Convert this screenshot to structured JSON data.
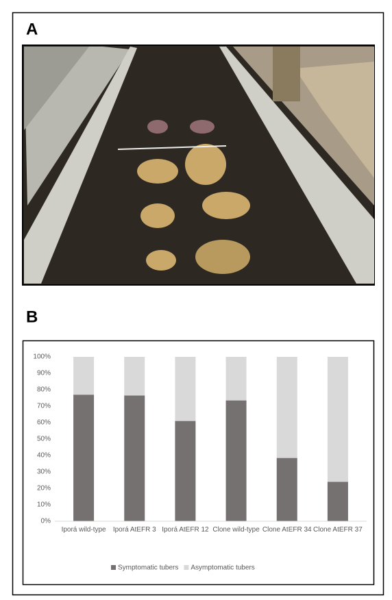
{
  "figure": {
    "panel_a_label": "A",
    "panel_b_label": "B"
  },
  "chart_data": {
    "type": "stacked_bar",
    "categories": [
      "Iporá wild-type",
      "Iporá AtEFR 3",
      "Iporá AtEFR 12",
      "Clone wild-type",
      "Clone AtEFR 34",
      "Clone AtEFR 37"
    ],
    "series": [
      {
        "name": "Symptomatic tubers",
        "color": "#757171",
        "values": [
          77,
          76.5,
          61,
          73.5,
          38.5,
          24
        ]
      },
      {
        "name": "Asymptomatic tubers",
        "color": "#d9d9d9",
        "values": [
          23,
          23.5,
          39,
          26.5,
          61.5,
          76
        ]
      }
    ],
    "ylim": [
      0,
      100
    ],
    "yticks": [
      {
        "value": 0,
        "label": "0%"
      },
      {
        "value": 10,
        "label": "10%"
      },
      {
        "value": 20,
        "label": "20%"
      },
      {
        "value": 30,
        "label": "30%"
      },
      {
        "value": 40,
        "label": "40%"
      },
      {
        "value": 50,
        "label": "50%"
      },
      {
        "value": 60,
        "label": "60%"
      },
      {
        "value": 70,
        "label": "70%"
      },
      {
        "value": 80,
        "label": "80%"
      },
      {
        "value": 90,
        "label": "90%"
      },
      {
        "value": 100,
        "label": "100%"
      }
    ],
    "grid": false,
    "legend": "bottom"
  }
}
